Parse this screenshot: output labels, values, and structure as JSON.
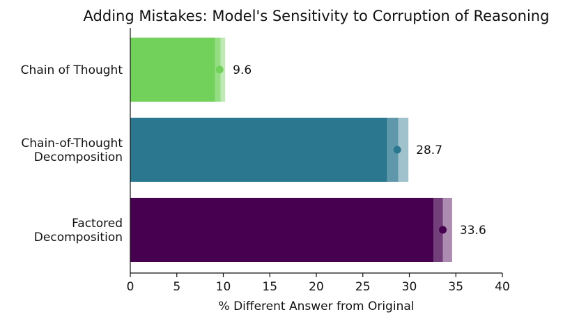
{
  "chart_data": {
    "type": "bar",
    "orientation": "horizontal",
    "title": "Adding Mistakes: Model's Sensitivity to Corruption of Reasoning",
    "xlabel": "% Different Answer from Original",
    "ylabel": "",
    "xlim": [
      0,
      40
    ],
    "xticks": [
      0,
      5,
      10,
      15,
      20,
      25,
      30,
      35,
      40
    ],
    "grid": false,
    "legend": "none",
    "categories": [
      {
        "label_lines": [
          "Chain of Thought"
        ],
        "value": 9.6,
        "value_label": "9.6",
        "ci_inner": [
          9.1,
          9.7
        ],
        "ci_outer": [
          9.1,
          10.2
        ],
        "color": "#72d15a"
      },
      {
        "label_lines": [
          "Chain-of-Thought",
          "Decomposition"
        ],
        "value": 28.7,
        "value_label": "28.7",
        "ci_inner": [
          27.6,
          28.8
        ],
        "ci_outer": [
          27.6,
          29.9
        ],
        "color": "#2b778f"
      },
      {
        "label_lines": [
          "Factored",
          "Decomposition"
        ],
        "value": 33.6,
        "value_label": "33.6",
        "ci_inner": [
          32.6,
          33.6
        ],
        "ci_outer": [
          32.6,
          34.6
        ],
        "color": "#46004f"
      }
    ]
  }
}
